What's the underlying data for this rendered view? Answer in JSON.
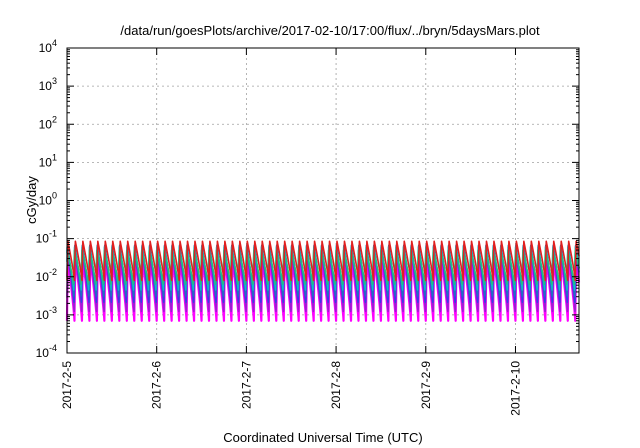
{
  "chart_data": {
    "type": "line",
    "title": "/data/run/goesPlots/archive/2017-02-10/17:00/flux/../bryn/5daysMars.plot",
    "xlabel": "Coordinated Universal Time (UTC)",
    "ylabel": "cGy/day",
    "y_scale": "log",
    "ylim": [
      0.0001,
      10000
    ],
    "y_ticks": [
      {
        "value": 0.0001,
        "base": "10",
        "exp": "-4"
      },
      {
        "value": 0.001,
        "base": "10",
        "exp": "-3"
      },
      {
        "value": 0.01,
        "base": "10",
        "exp": "-2"
      },
      {
        "value": 0.1,
        "base": "10",
        "exp": "-1"
      },
      {
        "value": 1,
        "base": "10",
        "exp": "0"
      },
      {
        "value": 10,
        "base": "10",
        "exp": "1"
      },
      {
        "value": 100,
        "base": "10",
        "exp": "2"
      },
      {
        "value": 1000,
        "base": "10",
        "exp": "3"
      },
      {
        "value": 10000,
        "base": "10",
        "exp": "4"
      }
    ],
    "xlim": [
      "2017-02-05T00:00",
      "2017-02-10T17:00"
    ],
    "x_ticks": [
      "2017-2-5",
      "2017-2-6",
      "2017-2-7",
      "2017-2-8",
      "2017-2-9",
      "2017-2-10"
    ],
    "x_tick_dates": [
      "2017-02-05",
      "2017-02-06",
      "2017-02-07",
      "2017-02-08",
      "2017-02-09",
      "2017-02-10"
    ],
    "grid": true,
    "legend": "none",
    "oscillation_period_hours": 2.0,
    "series": [
      {
        "color": "#ff00ff",
        "min": 0.0007,
        "max": 0.03,
        "phase_hours": 0.0
      },
      {
        "color": "#9b1fd1",
        "min": 0.0011,
        "max": 0.04,
        "phase_hours": 0.05
      },
      {
        "color": "#3a39e8",
        "min": 0.002,
        "max": 0.055,
        "phase_hours": 0.1
      },
      {
        "color": "#2070c0",
        "min": 0.003,
        "max": 0.07,
        "phase_hours": 0.15
      },
      {
        "color": "#10b8c8",
        "min": 0.0045,
        "max": 0.06,
        "phase_hours": 0.2
      },
      {
        "color": "#20c080",
        "min": 0.006,
        "max": 0.05,
        "phase_hours": 0.25
      },
      {
        "color": "#e02020",
        "min": 0.008,
        "max": 0.085,
        "phase_hours": 0.0
      }
    ]
  }
}
